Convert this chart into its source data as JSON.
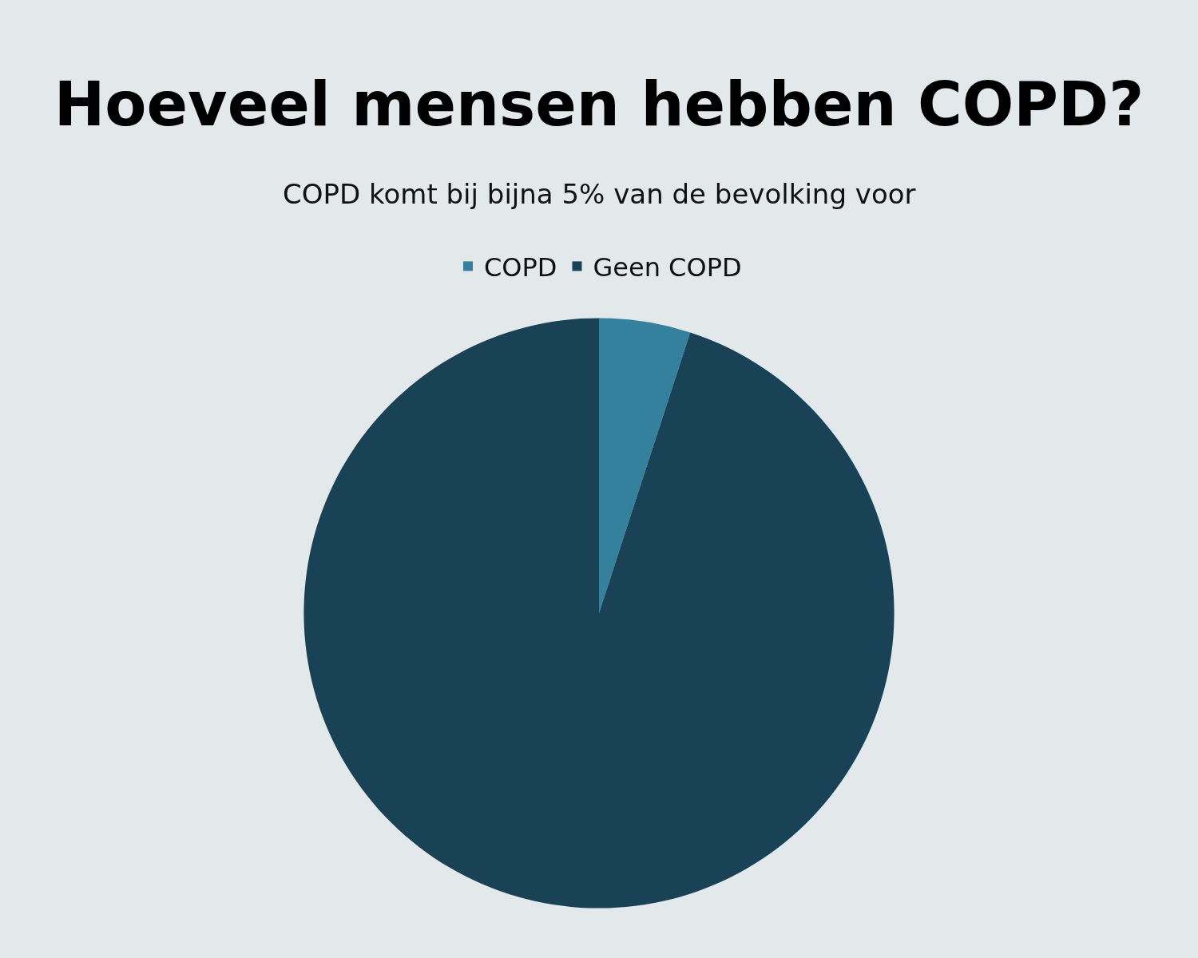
{
  "chart_data": {
    "type": "pie",
    "title": "Hoeveel mensen hebben COPD?",
    "subtitle": "COPD komt bij bijna 5% van de bevolking voor",
    "categories": [
      "COPD",
      "Geen COPD"
    ],
    "values": [
      5,
      95
    ],
    "colors": [
      "#35809c",
      "#1a4256"
    ],
    "legend": "top"
  }
}
